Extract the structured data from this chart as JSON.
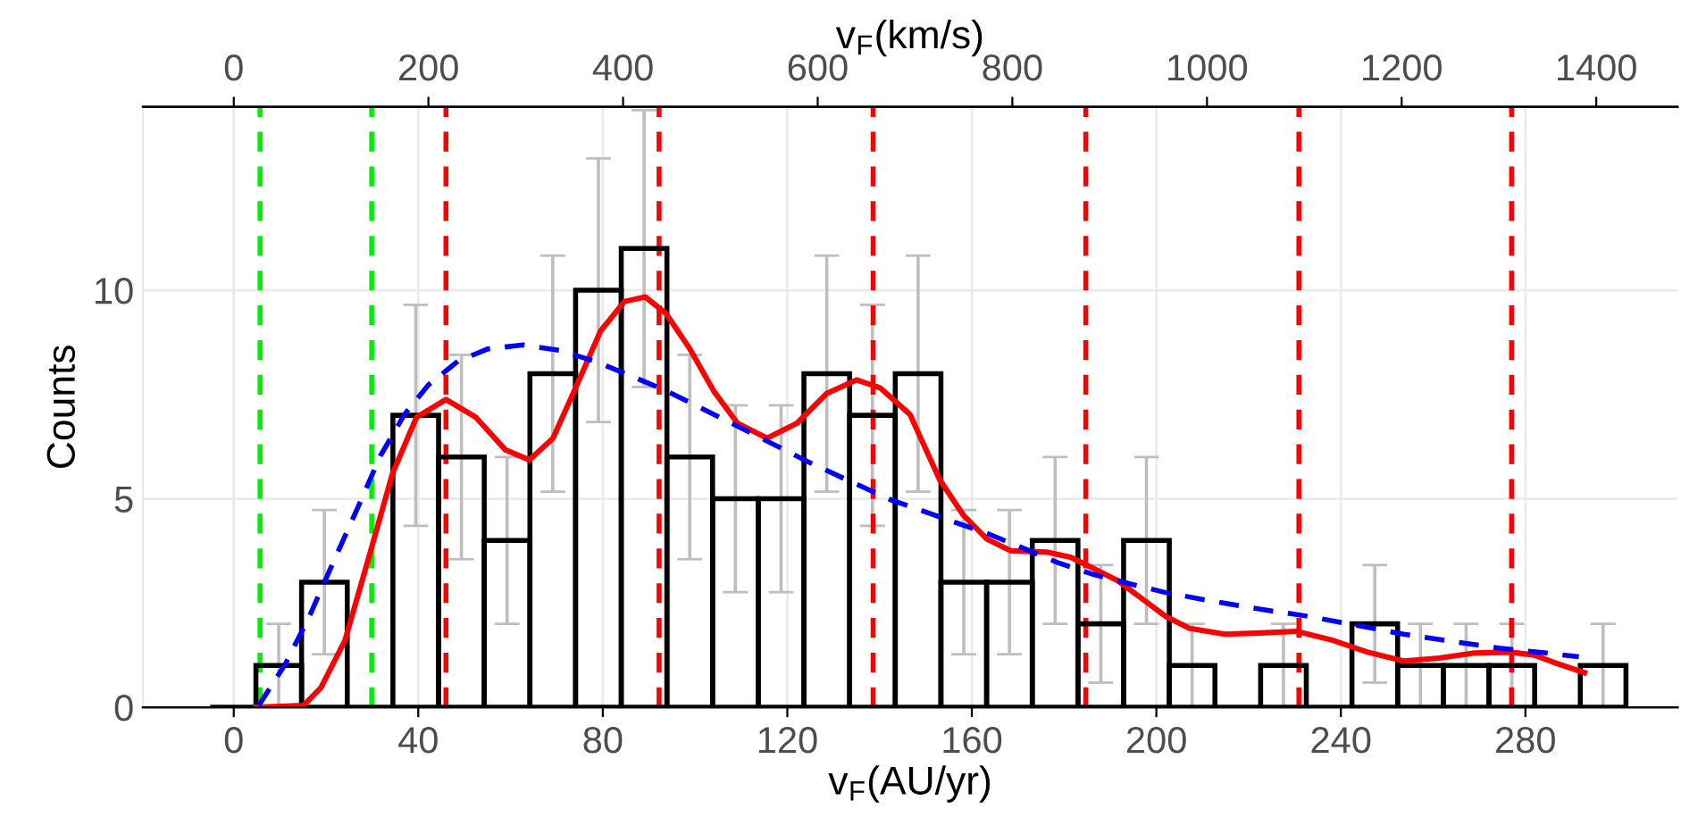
{
  "chart_data": {
    "type": "histogram",
    "xlabel": "v$_{F}$(AU/yr)",
    "x2label": "v$_{F}$(km/s)",
    "ylabel": "Counts",
    "bins": [
      -5.1,
      4.8,
      14.7,
      24.6,
      34.5,
      44.4,
      54.3,
      64.2,
      74.1,
      84.0,
      93.9,
      103.8,
      113.7,
      123.6,
      133.5,
      143.4,
      153.3,
      163.2,
      173.1,
      183.0,
      192.9,
      202.8,
      212.7,
      222.6,
      232.5,
      242.4,
      252.3,
      262.2,
      272.1,
      282.0,
      291.9,
      301.8
    ],
    "values": [
      0,
      1,
      3,
      0,
      7,
      6,
      4,
      8,
      10,
      11,
      6,
      5,
      5,
      8,
      7,
      8,
      3,
      3,
      4,
      2,
      4,
      1,
      0,
      1,
      0,
      2,
      1,
      1,
      1,
      0,
      1
    ],
    "errors": [
      null,
      1,
      1.73,
      null,
      2.65,
      2.45,
      2,
      2.83,
      3.16,
      3.32,
      2.45,
      2.24,
      2.24,
      2.83,
      2.65,
      2.83,
      1.73,
      1.73,
      2,
      1.41,
      2,
      1,
      null,
      1,
      null,
      1.41,
      1,
      1,
      1,
      null,
      1
    ],
    "color": "#000000",
    "series": [
      {
        "type": "line",
        "color": "#ff0000",
        "line_style": "solid",
        "x": [
          4.8,
          15.1,
          18.9,
          24.1,
          29.3,
          34.4,
          39.6,
          46.0,
          52.5,
          58.9,
          64.1,
          69.2,
          74.4,
          79.5,
          84.7,
          89.2,
          93.7,
          98.9,
          104.0,
          109.2,
          115.6,
          122.1,
          128.5,
          135.0,
          140.1,
          146.6,
          153.0,
          158.2,
          163.3,
          168.5,
          176.2,
          181.4,
          186.5,
          191.7,
          196.8,
          202.0,
          207.2,
          214.9,
          222.6,
          230.4,
          238.1,
          245.8,
          253.6,
          261.3,
          269.0,
          276.8,
          281.9,
          287.0,
          292.8
        ],
        "values": [
          0,
          0.04,
          0.47,
          1.6,
          3.6,
          5.6,
          6.95,
          7.38,
          6.95,
          6.17,
          5.93,
          6.45,
          7.73,
          9.02,
          9.73,
          9.84,
          9.44,
          8.59,
          7.59,
          6.81,
          6.45,
          6.81,
          7.52,
          7.85,
          7.66,
          7.02,
          5.46,
          4.6,
          4.03,
          3.75,
          3.72,
          3.6,
          3.32,
          3.03,
          2.61,
          2.18,
          1.89,
          1.75,
          1.78,
          1.82,
          1.61,
          1.32,
          1.11,
          1.18,
          1.3,
          1.32,
          1.25,
          1.04,
          0.83
        ]
      },
      {
        "type": "line",
        "color": "#0000ff",
        "line_style": "dashed",
        "x": [
          5.4,
          11.2,
          16.4,
          21.5,
          26.7,
          31.8,
          37.0,
          42.2,
          48.6,
          55.0,
          62.8,
          70.5,
          78.2,
          86.0,
          93.7,
          101.4,
          109.2,
          116.9,
          124.6,
          132.4,
          142.7,
          147.8,
          155.6,
          163.3,
          171.0,
          178.8,
          186.5,
          194.2,
          202.0,
          212.3,
          222.6,
          232.9,
          243.2,
          253.6,
          263.9,
          274.2,
          284.5,
          291.6
        ],
        "values": [
          0.04,
          1.04,
          2.18,
          3.46,
          4.74,
          6.03,
          7.02,
          7.73,
          8.3,
          8.59,
          8.69,
          8.56,
          8.3,
          7.95,
          7.59,
          7.17,
          6.74,
          6.31,
          5.88,
          5.48,
          4.96,
          4.77,
          4.46,
          4.17,
          3.82,
          3.46,
          3.18,
          2.96,
          2.75,
          2.54,
          2.35,
          2.18,
          1.97,
          1.75,
          1.58,
          1.42,
          1.3,
          1.21
        ]
      }
    ],
    "ref_lines": [
      {
        "axis": "x",
        "value": 5.7,
        "color": "#00ee00",
        "line_style": "dashed"
      },
      {
        "axis": "x",
        "value": 29.9,
        "color": "#00ee00",
        "line_style": "dashed"
      },
      {
        "axis": "x",
        "value": 46.0,
        "color": "#ff0000",
        "line_style": "dashed"
      },
      {
        "axis": "x",
        "value": 92.2,
        "color": "#ff0000",
        "line_style": "dashed"
      },
      {
        "axis": "x",
        "value": 138.6,
        "color": "#ff0000",
        "line_style": "dashed"
      },
      {
        "axis": "x",
        "value": 184.7,
        "color": "#ff0000",
        "line_style": "dashed"
      },
      {
        "axis": "x",
        "value": 230.9,
        "color": "#ff0000",
        "line_style": "dashed"
      },
      {
        "axis": "x",
        "value": 277.0,
        "color": "#ff0000",
        "line_style": "dashed"
      }
    ],
    "xlim": [
      -19.7,
      313
    ],
    "xticks": [
      0,
      40,
      80,
      120,
      160,
      200,
      240,
      280
    ],
    "x2lim": [
      -93.4,
      1483.6
    ],
    "x2ticks": [
      0,
      200,
      400,
      600,
      800,
      1000,
      1200,
      1400
    ],
    "ylim": [
      0,
      14.4
    ],
    "yticks": [
      0,
      5,
      10
    ],
    "grid": true
  }
}
